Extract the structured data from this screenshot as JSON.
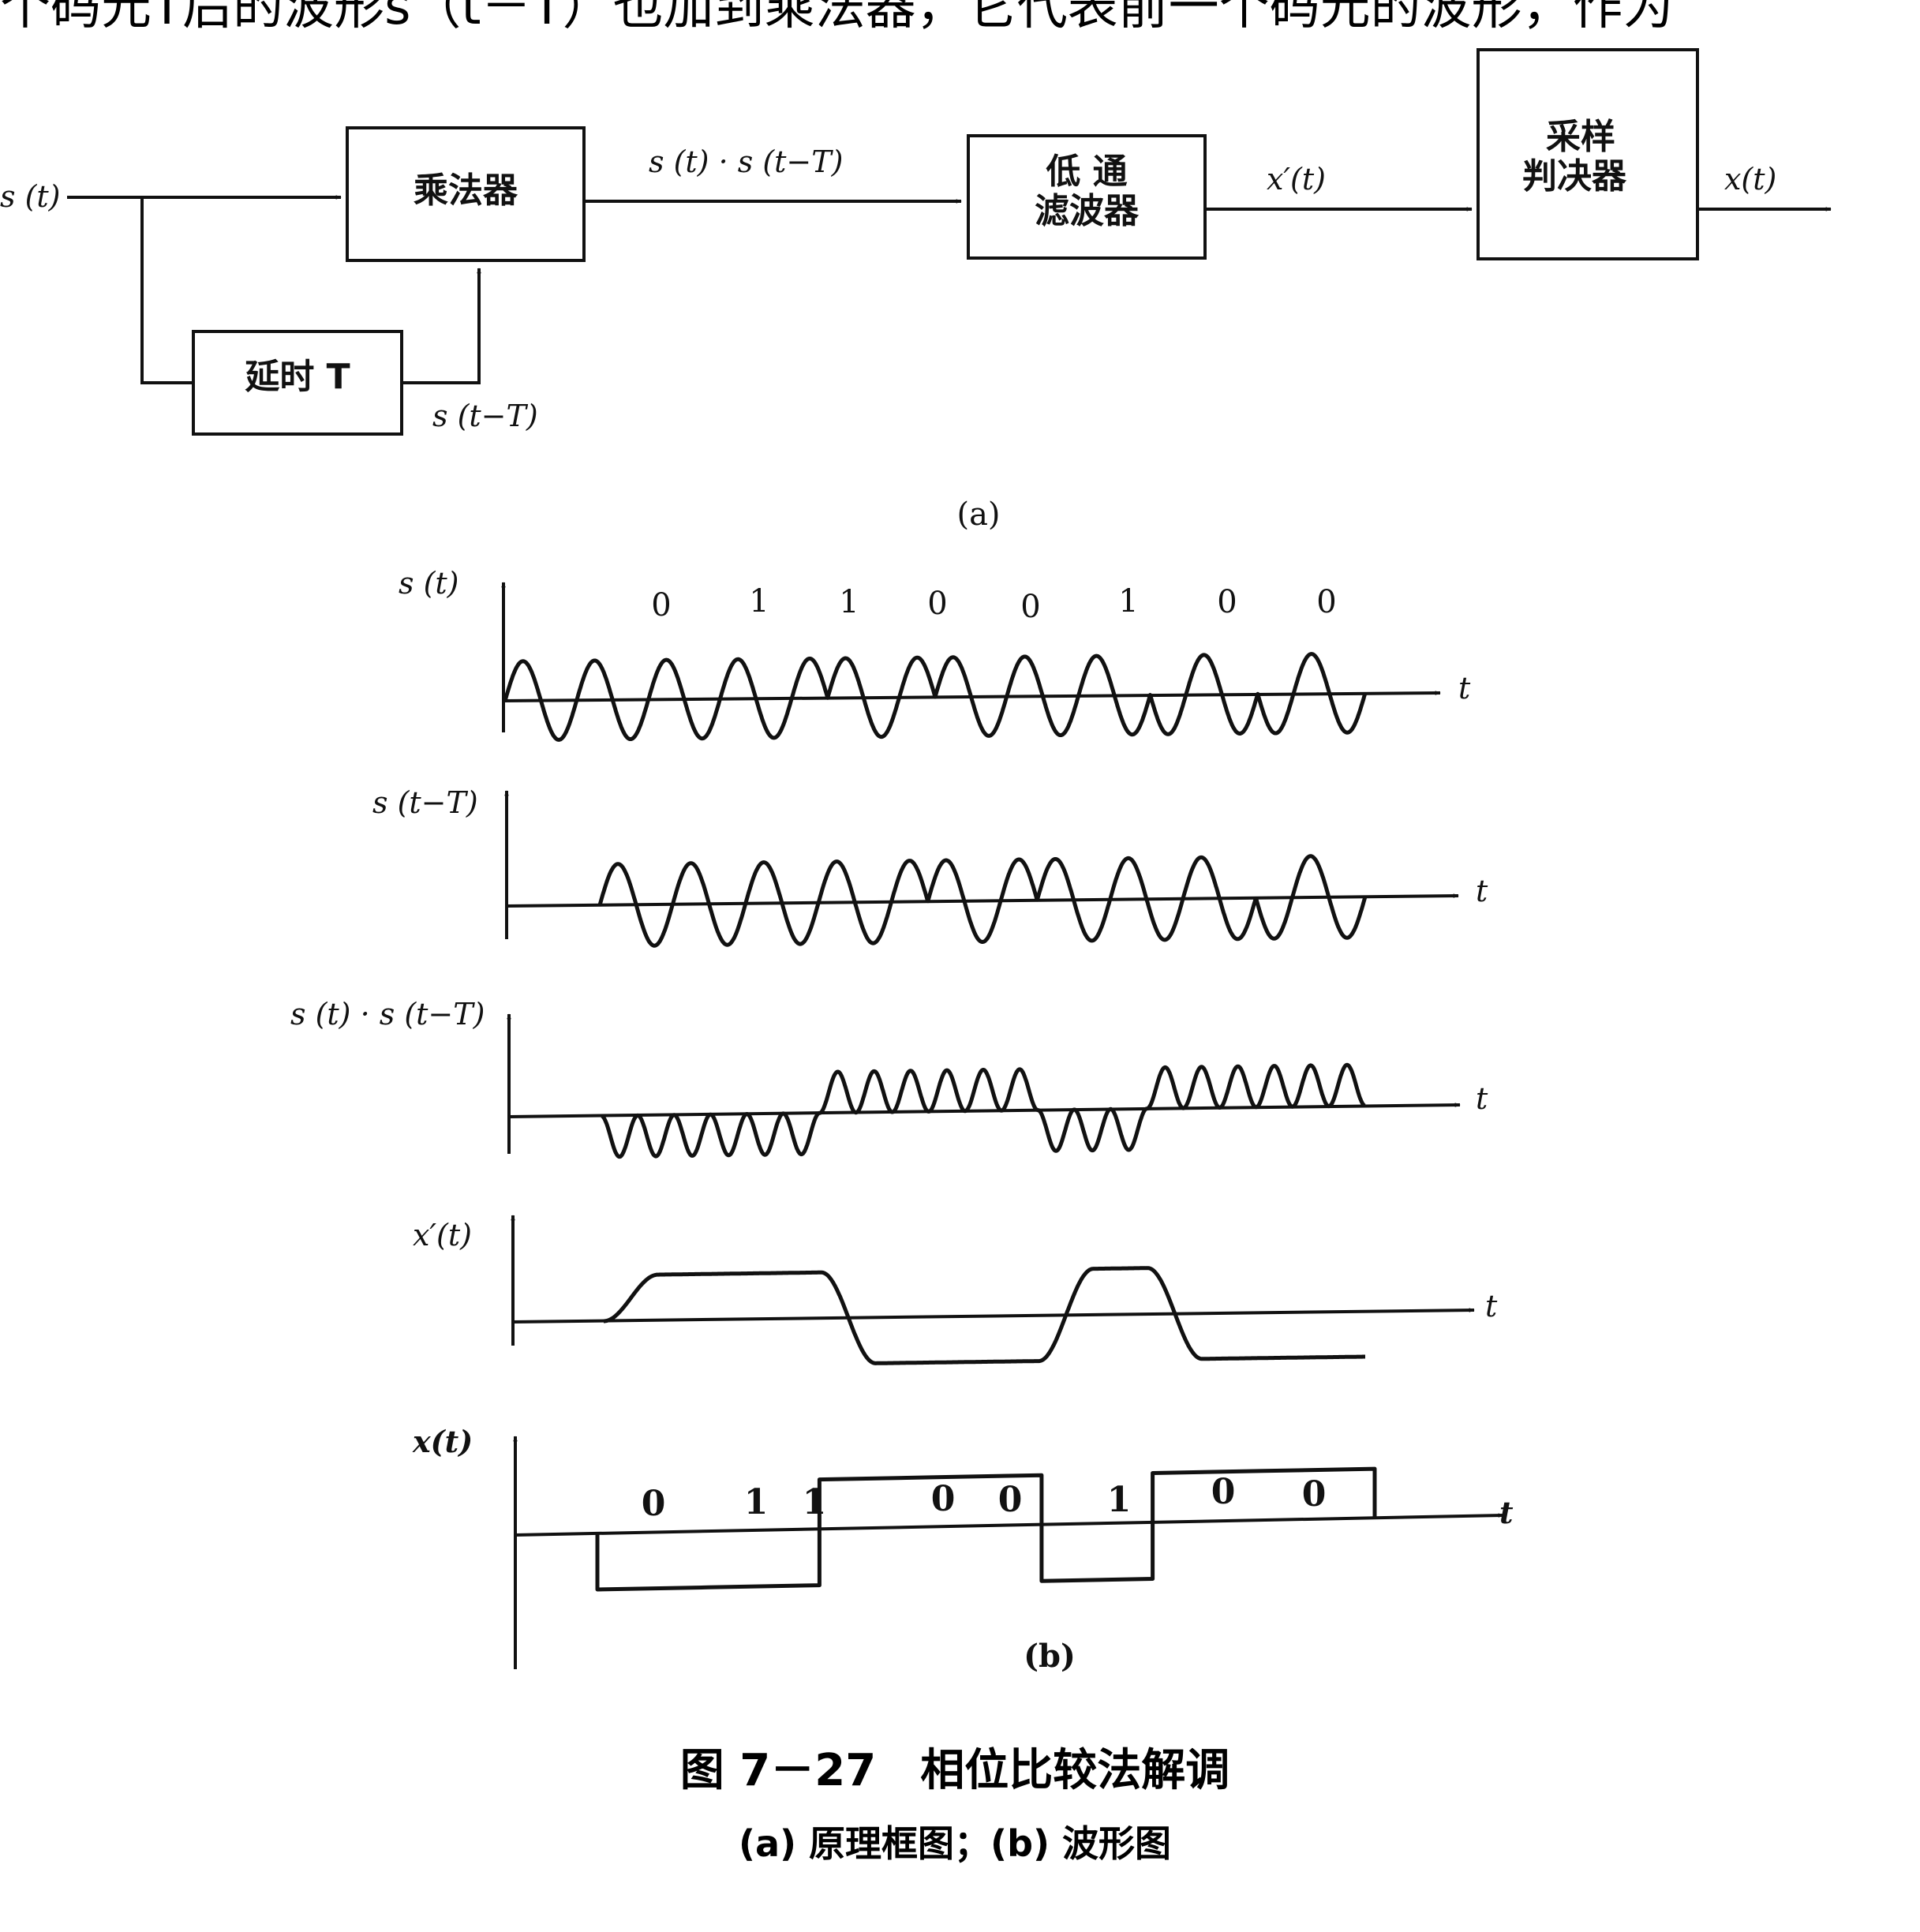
{
  "top_text": "个码元T后的波形s（t－T）也加到乘法器，它代表前一个码元的波形，作为",
  "block_diagram": {
    "input": "s (t)",
    "multiplier": "乘法器",
    "delay": "延时 T",
    "delayed": "s (t−T)",
    "product": "s (t) · s (t−T)",
    "lpf_line1": "低 通",
    "lpf_line2": "滤波器",
    "lpf_out": "x′(t)",
    "sampler_line1": "采样",
    "sampler_line2": "判决器",
    "output": "x(t)",
    "label": "(a)"
  },
  "waveforms": {
    "bits": [
      "0",
      "1",
      "1",
      "0",
      "0",
      "1",
      "0",
      "0"
    ],
    "s_label": "s (t)",
    "sdelay_label": "s (t−T)",
    "product_label": "s (t) · s (t−T)",
    "xprime_label": "x′(t)",
    "x_label": "x(t)",
    "t_label": "t",
    "out_bits": [
      "0",
      "1",
      "1",
      "0",
      "0",
      "1",
      "0",
      "0"
    ],
    "label": "(b)"
  },
  "caption": {
    "title": "图 7－27　相位比较法解调",
    "subtitle": "(a) 原理框图；(b) 波形图"
  }
}
